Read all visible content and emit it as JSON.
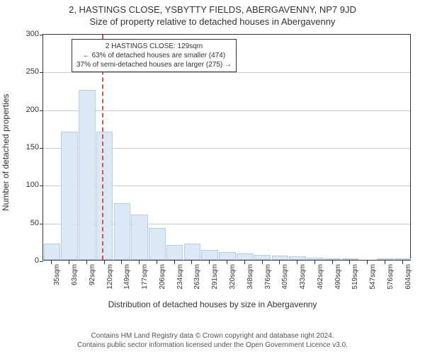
{
  "titles": {
    "main": "2, HASTINGS CLOSE, YSBYTTY FIELDS, ABERGAVENNY, NP7 9JD",
    "sub": "Size of property relative to detached houses in Abergavenny"
  },
  "chart": {
    "type": "bar",
    "y": {
      "label": "Number of detached properties",
      "min": 0,
      "max": 300,
      "ticks": [
        0,
        50,
        100,
        150,
        200,
        250,
        300
      ]
    },
    "x": {
      "label": "Distribution of detached houses by size in Abergavenny",
      "categories": [
        "35sqm",
        "63sqm",
        "92sqm",
        "120sqm",
        "149sqm",
        "177sqm",
        "206sqm",
        "234sqm",
        "263sqm",
        "291sqm",
        "320sqm",
        "348sqm",
        "376sqm",
        "405sqm",
        "433sqm",
        "462sqm",
        "490sqm",
        "519sqm",
        "547sqm",
        "576sqm",
        "604sqm"
      ]
    },
    "values": [
      22,
      170,
      225,
      170,
      75,
      60,
      42,
      20,
      22,
      13,
      10,
      8,
      7,
      6,
      5,
      3,
      2,
      1,
      0,
      1,
      2
    ],
    "bar_fill": "#dbe8f6",
    "bar_border": "#b8cce4",
    "grid_color": "#cccccc",
    "axis_color": "#333333",
    "background": "#ffffff",
    "reference_line": {
      "color": "#d9534f",
      "after_category_index": 3
    },
    "annotation": {
      "lines": [
        "2 HASTINGS CLOSE: 129sqm",
        "← 63% of detached houses are smaller (474)",
        "37% of semi-detached houses are larger (275) →"
      ],
      "border_color": "#333333",
      "bg_color": "#ffffff",
      "font_size": 10
    }
  },
  "footer": {
    "line1": "Contains HM Land Registry data © Crown copyright and database right 2024.",
    "line2": "Contains public sector information licensed under the Open Government Licence v3.0."
  }
}
